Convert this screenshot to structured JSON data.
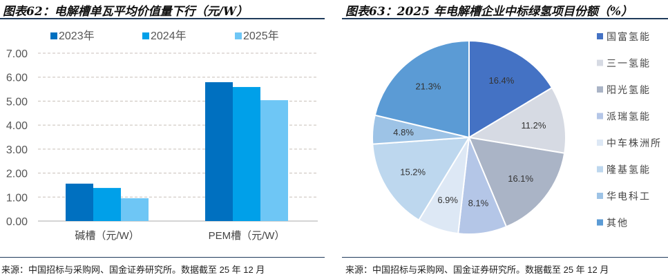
{
  "left": {
    "title": "图表62：电解槽单瓦平均价值量下行（元/W）",
    "source": "来源：中国招标与采购网、国金证券研究所。数据截至 25 年 12 月"
  },
  "right": {
    "title": "图表63：2025 年电解槽企业中标绿氢项目份额（%）",
    "source": "来源：中国招标与采购网、国金证券研究所。数据截至 25 年 12 月"
  },
  "chart_data": [
    {
      "type": "bar",
      "title": "电解槽单瓦平均价值量下行（元/W）",
      "categories": [
        "碱槽（元/W）",
        "PEM槽（元/W）"
      ],
      "series": [
        {
          "name": "2023年",
          "values": [
            1.56,
            5.79
          ],
          "color": "#0070c0"
        },
        {
          "name": "2024年",
          "values": [
            1.38,
            5.59
          ],
          "color": "#00a0e9"
        },
        {
          "name": "2025年",
          "values": [
            0.95,
            5.04
          ],
          "color": "#6ec6f5"
        }
      ],
      "ylim": [
        0,
        7
      ],
      "yticks": [
        "0.00",
        "1.00",
        "2.00",
        "3.00",
        "4.00",
        "5.00",
        "6.00",
        "7.00"
      ],
      "legend": "top",
      "grid": true
    },
    {
      "type": "pie",
      "title": "2025 年电解槽企业中标绿氢项目份额（%）",
      "labels": [
        "国富氢能",
        "三一氢能",
        "阳光氢能",
        "派瑞氢能",
        "中车株洲所",
        "隆基氢能",
        "华电科工",
        "其他"
      ],
      "values": [
        16.4,
        11.2,
        16.1,
        8.1,
        6.9,
        15.2,
        4.8,
        21.3
      ],
      "value_labels": [
        "16.4%",
        "11.2%",
        "16.1%",
        "8.1%",
        "6.9%",
        "15.2%",
        "4.8%",
        "21.3%"
      ],
      "colors": [
        "#4472c4",
        "#d6dae3",
        "#aab4c6",
        "#b4c6e7",
        "#dde8f5",
        "#bdd7ee",
        "#9dc3e6",
        "#5b9bd5"
      ],
      "legend": "right"
    }
  ]
}
